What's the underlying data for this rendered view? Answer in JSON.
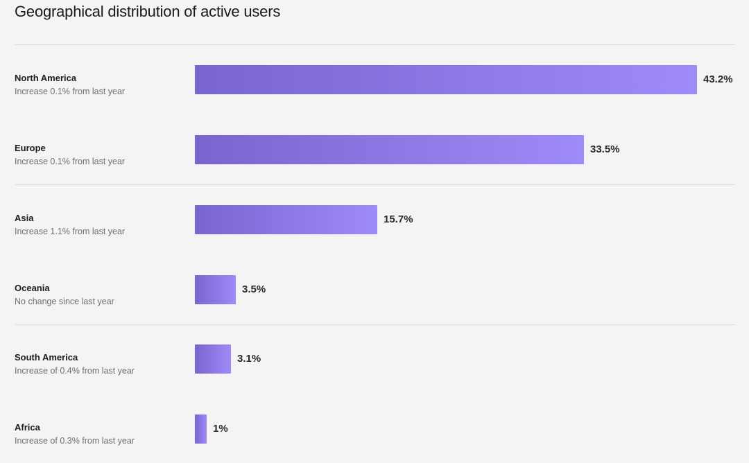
{
  "page": {
    "title": "Geographical distribution of active users"
  },
  "chart_data": {
    "type": "bar",
    "orientation": "horizontal",
    "title": "Geographical distribution of active users",
    "xlabel": "",
    "ylabel": "",
    "xlim": [
      0,
      43.2
    ],
    "grid": false,
    "unit": "%",
    "categories": [
      "North America",
      "Europe",
      "Asia",
      "Oceania",
      "South America",
      "Africa"
    ],
    "values": [
      43.2,
      33.5,
      15.7,
      3.5,
      3.1,
      1
    ],
    "rows": [
      {
        "region": "North America",
        "value": 43.2,
        "value_label": "43.2%",
        "change": "Increase 0.1% from last year"
      },
      {
        "region": "Europe",
        "value": 33.5,
        "value_label": "33.5%",
        "change": "Increase 0.1% from last year"
      },
      {
        "region": "Asia",
        "value": 15.7,
        "value_label": "15.7%",
        "change": "Increase 1.1% from last year"
      },
      {
        "region": "Oceania",
        "value": 3.5,
        "value_label": "3.5%",
        "change": "No change since last year"
      },
      {
        "region": "South America",
        "value": 3.1,
        "value_label": "3.1%",
        "change": "Increase of 0.4% from last year"
      },
      {
        "region": "Africa",
        "value": 1,
        "value_label": "1%",
        "change": "Increase of 0.3% from last year"
      }
    ],
    "colors": {
      "bar_start": "#7a64cf",
      "bar_end": "#9f8af9",
      "divider": "#dcdcde"
    }
  }
}
